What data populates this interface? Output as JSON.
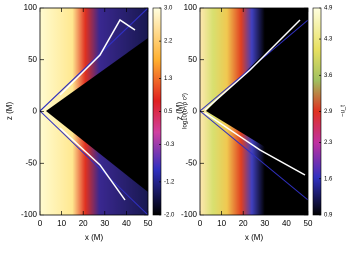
{
  "chart_data": [
    {
      "type": "heatmap",
      "xlabel": "x (M)",
      "ylabel": "z (M)",
      "xlim": [
        0,
        50
      ],
      "ylim": [
        -100,
        100
      ],
      "xticks": [
        0,
        10,
        20,
        30,
        40,
        50
      ],
      "yticks": [
        -100,
        -50,
        0,
        50,
        100
      ],
      "colorbar": {
        "label": "log10(b²/ρ c²)",
        "clim": [
          -2,
          3
        ],
        "ticks": [
          {
            "value": -2,
            "label": "-2.0"
          },
          -1.2,
          -0.3,
          0.5,
          1.3,
          2.2,
          {
            "value": 3,
            "label": "3.0"
          }
        ]
      }
    },
    {
      "type": "heatmap",
      "xlabel": "x (M)",
      "ylabel": "z (M)",
      "xlim": [
        0,
        50
      ],
      "ylim": [
        -100,
        100
      ],
      "xticks": [
        0,
        10,
        20,
        30,
        40,
        50
      ],
      "yticks": [
        -100,
        -50,
        0,
        50,
        100
      ],
      "colorbar": {
        "label": "−u_t",
        "clim": [
          0.9,
          4.9
        ],
        "ticks": [
          0.9,
          1.6,
          2.3,
          2.9,
          3.6,
          4.3,
          4.9
        ]
      }
    }
  ]
}
